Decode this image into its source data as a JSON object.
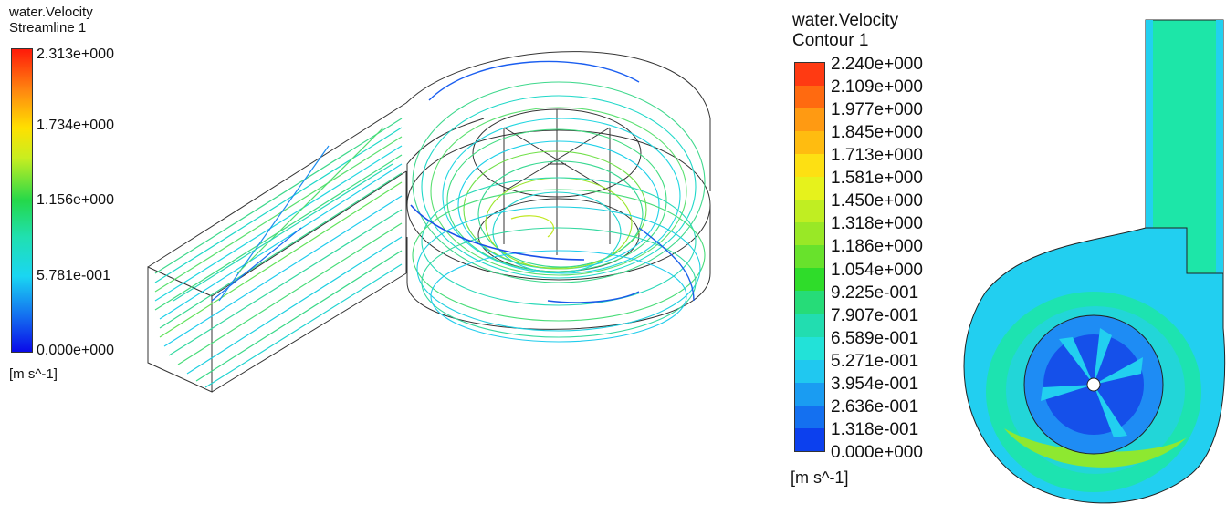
{
  "streamline_legend": {
    "variable": "water.Velocity",
    "plot": "Streamline 1",
    "ticks": [
      "2.313e+000",
      "1.734e+000",
      "1.156e+000",
      "5.781e-001",
      "0.000e+000"
    ],
    "unit": "[m s^-1]"
  },
  "contour_legend": {
    "variable": "water.Velocity",
    "plot": "Contour 1",
    "levels": [
      "2.240e+000",
      "2.109e+000",
      "1.977e+000",
      "1.845e+000",
      "1.713e+000",
      "1.581e+000",
      "1.450e+000",
      "1.318e+000",
      "1.186e+000",
      "1.054e+000",
      "9.225e-001",
      "7.907e-001",
      "6.589e-001",
      "5.271e-001",
      "3.954e-001",
      "2.636e-001",
      "1.318e-001",
      "0.000e+000"
    ],
    "level_colors": [
      "#ff3a12",
      "#ff6a10",
      "#ff9a12",
      "#ffbc10",
      "#fde013",
      "#e6f21c",
      "#c0ee22",
      "#99e826",
      "#68e22c",
      "#2fdc2a",
      "#26dc78",
      "#22ddb0",
      "#22e2d8",
      "#20c8f0",
      "#1a9cf2",
      "#1470f0",
      "#0c40ee",
      "#0a18f0"
    ],
    "unit": "[m s^-1]"
  },
  "colors": {
    "max": "#ff1a0a",
    "high": "#ffe000",
    "mid": "#24d84a",
    "low": "#1ad6f2",
    "min": "#0a0ae8"
  }
}
